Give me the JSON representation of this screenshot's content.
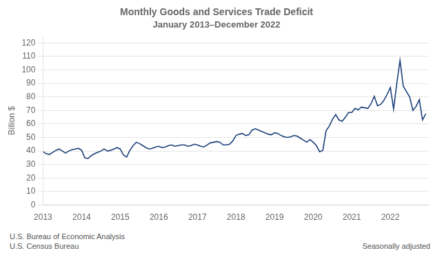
{
  "chart_data": {
    "type": "line",
    "title": "Monthly Goods and Services Trade Deficit",
    "subtitle": "January 2013–December 2022",
    "ylabel": "Billion $",
    "annotations": [
      "U.S. Bureau of Economic Analysis",
      "U.S. Census Bureau",
      "Seasonally adjusted"
    ],
    "color": "#1B3F7A",
    "grid": true,
    "xlim": [
      2013,
      2023
    ],
    "xticks": [
      2013,
      2014,
      2015,
      2016,
      2017,
      2018,
      2019,
      2020,
      2021,
      2022
    ],
    "ylim": [
      0,
      125
    ],
    "yticks": [
      0,
      10,
      20,
      30,
      40,
      50,
      60,
      70,
      80,
      90,
      100,
      110,
      120
    ],
    "x": [
      2013,
      2013.0833333333333,
      2013.1666666666667,
      2013.25,
      2013.3333333333333,
      2013.4166666666667,
      2013.5,
      2013.5833333333333,
      2013.6666666666667,
      2013.75,
      2013.8333333333333,
      2013.9166666666667,
      2014,
      2014.0833333333333,
      2014.1666666666667,
      2014.25,
      2014.3333333333333,
      2014.4166666666667,
      2014.5,
      2014.5833333333333,
      2014.6666666666667,
      2014.75,
      2014.8333333333333,
      2014.9166666666667,
      2015,
      2015.0833333333333,
      2015.1666666666667,
      2015.25,
      2015.3333333333333,
      2015.4166666666667,
      2015.5,
      2015.5833333333333,
      2015.6666666666667,
      2015.75,
      2015.8333333333333,
      2015.9166666666667,
      2016,
      2016.0833333333333,
      2016.1666666666667,
      2016.25,
      2016.3333333333333,
      2016.4166666666667,
      2016.5,
      2016.5833333333333,
      2016.6666666666667,
      2016.75,
      2016.8333333333333,
      2016.9166666666667,
      2017,
      2017.0833333333333,
      2017.1666666666667,
      2017.25,
      2017.3333333333333,
      2017.4166666666667,
      2017.5,
      2017.5833333333333,
      2017.6666666666667,
      2017.75,
      2017.8333333333333,
      2017.9166666666667,
      2018,
      2018.0833333333333,
      2018.1666666666667,
      2018.25,
      2018.3333333333333,
      2018.4166666666667,
      2018.5,
      2018.5833333333333,
      2018.6666666666667,
      2018.75,
      2018.8333333333333,
      2018.9166666666667,
      2019,
      2019.0833333333333,
      2019.1666666666667,
      2019.25,
      2019.3333333333333,
      2019.4166666666667,
      2019.5,
      2019.5833333333333,
      2019.6666666666667,
      2019.75,
      2019.8333333333333,
      2019.9166666666667,
      2020,
      2020.0833333333333,
      2020.1666666666667,
      2020.25,
      2020.3333333333333,
      2020.4166666666667,
      2020.5,
      2020.5833333333333,
      2020.6666666666667,
      2020.75,
      2020.8333333333333,
      2020.9166666666667,
      2021,
      2021.0833333333333,
      2021.1666666666667,
      2021.25,
      2021.3333333333333,
      2021.4166666666667,
      2021.5,
      2021.5833333333333,
      2021.6666666666667,
      2021.75,
      2021.8333333333333,
      2021.9166666666667,
      2022,
      2022.0833333333333,
      2022.1666666666667,
      2022.25,
      2022.3333333333333,
      2022.4166666666667,
      2022.5,
      2022.5833333333333,
      2022.6666666666667,
      2022.75,
      2022.8333333333333,
      2022.9166666666667
    ],
    "values": [
      39.5,
      38.0,
      37.5,
      39.0,
      40.5,
      41.5,
      40.0,
      38.5,
      40.0,
      41.0,
      41.5,
      42.0,
      40.5,
      35.0,
      34.5,
      36.5,
      38.0,
      39.0,
      40.0,
      41.5,
      40.0,
      40.5,
      41.5,
      42.5,
      41.5,
      37.0,
      35.5,
      40.5,
      44.0,
      46.5,
      45.5,
      44.0,
      42.5,
      41.5,
      42.0,
      43.0,
      43.5,
      42.5,
      43.0,
      44.0,
      44.5,
      43.5,
      44.0,
      44.5,
      44.5,
      43.5,
      44.0,
      45.0,
      44.5,
      43.5,
      43.0,
      44.5,
      46.0,
      46.5,
      47.0,
      46.5,
      44.5,
      44.5,
      45.0,
      47.5,
      51.5,
      52.5,
      53.0,
      51.5,
      52.0,
      55.5,
      56.5,
      55.5,
      54.5,
      53.5,
      52.5,
      52.0,
      53.5,
      53.0,
      51.5,
      50.5,
      50.0,
      50.5,
      51.5,
      51.0,
      49.5,
      48.0,
      46.5,
      48.5,
      46.5,
      44.0,
      39.5,
      40.5,
      55.0,
      58.5,
      63.5,
      67.0,
      63.0,
      62.0,
      65.0,
      68.5,
      68.5,
      71.5,
      70.5,
      72.5,
      72.0,
      71.5,
      75.0,
      80.5,
      73.5,
      74.5,
      77.5,
      82.0,
      87.0,
      71.0,
      90.0,
      107.0,
      88.0,
      84.0,
      80.0,
      70.0,
      73.0,
      78.0,
      63.0,
      67.5
    ]
  }
}
